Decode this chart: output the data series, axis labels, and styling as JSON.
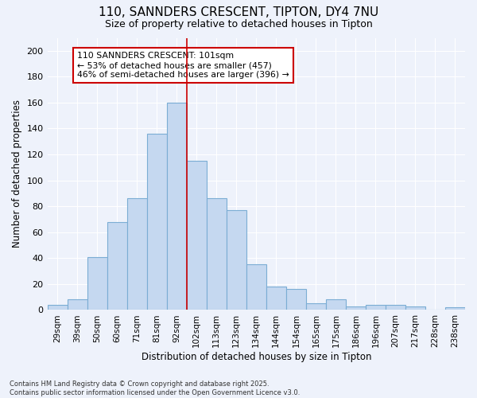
{
  "title_line1": "110, SANNDERS CRESCENT, TIPTON, DY4 7NU",
  "title_line2": "Size of property relative to detached houses in Tipton",
  "xlabel": "Distribution of detached houses by size in Tipton",
  "ylabel": "Number of detached properties",
  "footer_line1": "Contains HM Land Registry data © Crown copyright and database right 2025.",
  "footer_line2": "Contains public sector information licensed under the Open Government Licence v3.0.",
  "annotation_line1": "110 SANNDERS CRESCENT: 101sqm",
  "annotation_line2": "← 53% of detached houses are smaller (457)",
  "annotation_line3": "46% of semi-detached houses are larger (396) →",
  "bar_labels": [
    "29sqm",
    "39sqm",
    "50sqm",
    "60sqm",
    "71sqm",
    "81sqm",
    "92sqm",
    "102sqm",
    "113sqm",
    "123sqm",
    "134sqm",
    "144sqm",
    "154sqm",
    "165sqm",
    "175sqm",
    "186sqm",
    "196sqm",
    "207sqm",
    "217sqm",
    "228sqm",
    "238sqm"
  ],
  "bar_values": [
    4,
    8,
    41,
    68,
    86,
    136,
    160,
    115,
    86,
    77,
    35,
    18,
    16,
    5,
    8,
    3,
    4,
    4,
    3,
    0,
    2
  ],
  "bar_color": "#c5d8f0",
  "bar_edge_color": "#7badd4",
  "vline_x_idx": 7,
  "vline_color": "#cc0000",
  "annotation_box_edge": "#cc0000",
  "background_color": "#eef2fb",
  "grid_color": "#ffffff",
  "ylim": [
    0,
    210
  ],
  "yticks": [
    0,
    20,
    40,
    60,
    80,
    100,
    120,
    140,
    160,
    180,
    200
  ]
}
